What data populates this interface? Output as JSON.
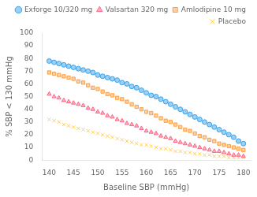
{
  "chart_data": {
    "type": "scatter",
    "xlabel": "Baseline SBP (mmHg)",
    "ylabel": "% SBP < 130 mmHg",
    "x": [
      140,
      141,
      142,
      143,
      144,
      145,
      146,
      147,
      148,
      149,
      150,
      151,
      152,
      153,
      154,
      155,
      156,
      157,
      158,
      159,
      160,
      161,
      162,
      163,
      164,
      165,
      166,
      167,
      168,
      169,
      170,
      171,
      172,
      173,
      174,
      175,
      176,
      177,
      178,
      179,
      180
    ],
    "series": [
      {
        "name": "Exforge 10/320 mg",
        "marker": "circle",
        "values": [
          78,
          77,
          76,
          75,
          74,
          73,
          72,
          71,
          70,
          69,
          67,
          66,
          65,
          64,
          63,
          61,
          60,
          58,
          57,
          55,
          53,
          51,
          50,
          48,
          46,
          44,
          42,
          40,
          38,
          36,
          34,
          32,
          30,
          28,
          26,
          24,
          22,
          20,
          18,
          15,
          13
        ]
      },
      {
        "name": "Valsartan 320 mg",
        "marker": "triangle",
        "values": [
          52,
          50,
          49,
          47,
          46,
          45,
          44,
          43,
          41,
          40,
          38,
          37,
          35,
          34,
          32,
          31,
          29,
          28,
          27,
          25,
          23,
          22,
          21,
          19,
          18,
          17,
          15,
          14,
          13,
          12,
          11,
          10,
          9,
          8,
          7,
          7,
          6,
          5,
          4,
          4,
          3
        ]
      },
      {
        "name": "Amlodipine 10 mg",
        "marker": "square",
        "values": [
          69,
          68,
          67,
          66,
          65,
          64,
          62,
          61,
          59,
          57,
          56,
          54,
          52,
          51,
          49,
          48,
          46,
          44,
          42,
          40,
          38,
          37,
          35,
          33,
          31,
          30,
          28,
          26,
          24,
          23,
          21,
          19,
          18,
          16,
          15,
          13,
          12,
          11,
          10,
          9,
          8
        ]
      },
      {
        "name": "Placebo",
        "marker": "cross",
        "values": [
          32,
          31,
          30,
          28,
          27,
          26,
          25,
          24,
          23,
          22,
          21,
          20,
          19,
          18,
          17,
          16,
          15,
          14,
          13,
          12,
          12,
          11,
          10,
          9,
          9,
          8,
          7,
          7,
          6,
          6,
          5,
          5,
          4,
          4,
          3,
          3,
          3,
          2,
          2,
          2,
          2
        ]
      }
    ],
    "xlim": [
      138.5,
      181.5
    ],
    "ylim": [
      0,
      100
    ],
    "xticks": [
      140,
      145,
      150,
      155,
      160,
      165,
      170,
      175,
      180
    ],
    "yticks": [
      0,
      10,
      20,
      30,
      40,
      50,
      60,
      70,
      80,
      90,
      100
    ],
    "grid": false,
    "legend": "upper right"
  }
}
